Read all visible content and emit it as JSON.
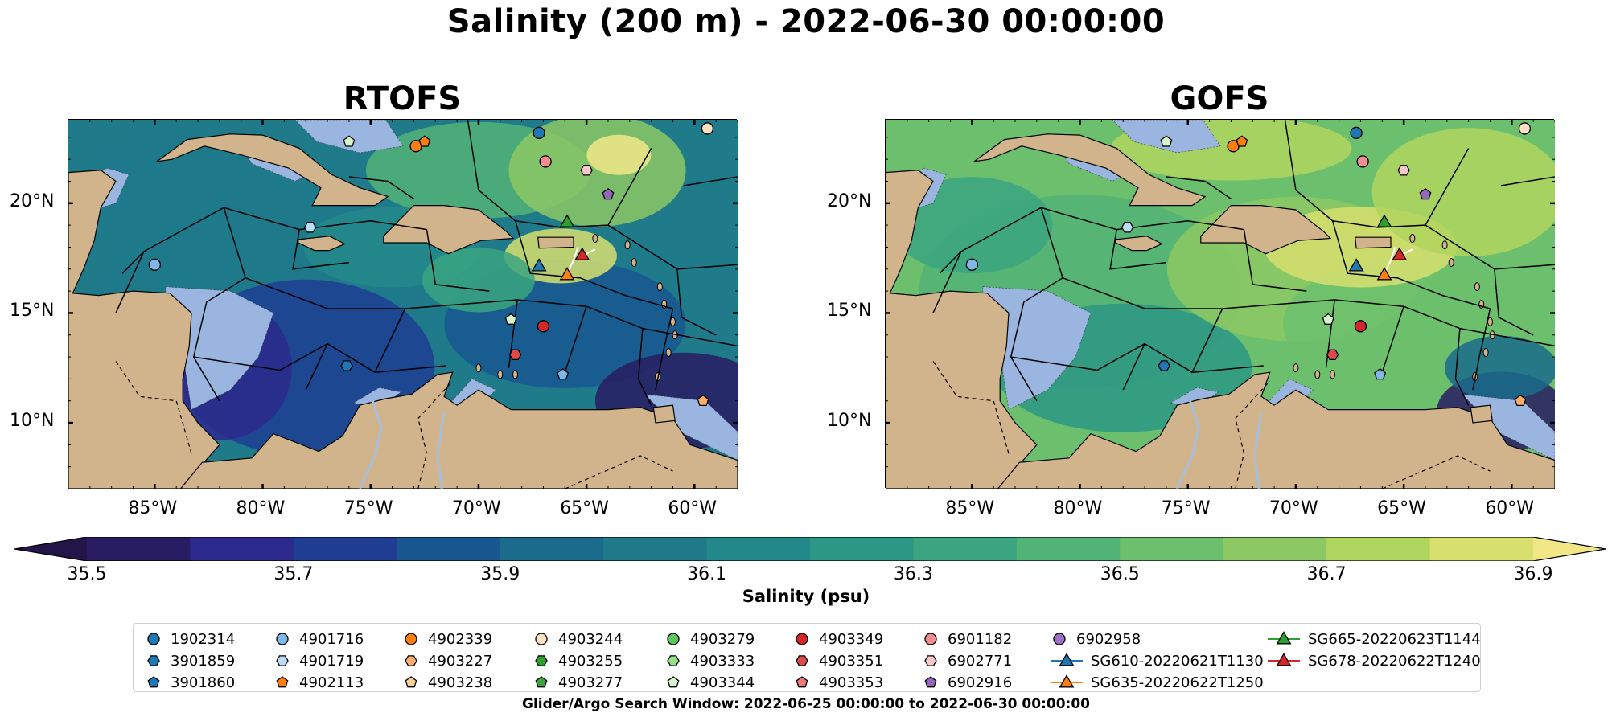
{
  "title": "Salinity (200 m) - 2022-06-30 00:00:00",
  "panels": [
    {
      "id": "rtofs",
      "title": "RTOFS"
    },
    {
      "id": "gofs",
      "title": "GOFS"
    }
  ],
  "axes": {
    "x_ticks": [
      "85°W",
      "80°W",
      "75°W",
      "70°W",
      "65°W",
      "60°W"
    ],
    "x_values": [
      -85,
      -80,
      -75,
      -70,
      -65,
      -60
    ],
    "y_ticks": [
      "20°N",
      "15°N",
      "10°N"
    ],
    "y_values": [
      20,
      15,
      10
    ],
    "lon_range": [
      -89,
      -58
    ],
    "lat_range": [
      7,
      23.8
    ]
  },
  "colorbar": {
    "label": "Salinity (psu)",
    "tick_labels": [
      "35.5",
      "35.7",
      "35.9",
      "36.1",
      "36.3",
      "36.5",
      "36.7",
      "36.9"
    ],
    "min": 35.5,
    "max": 36.9,
    "step": 0.1,
    "extend": "both",
    "colors": [
      "#281c62",
      "#2c2a8c",
      "#1f3e93",
      "#195791",
      "#1a6b8c",
      "#1f7a8a",
      "#23888a",
      "#2b9784",
      "#3aa580",
      "#52b377",
      "#6cbf6c",
      "#8cc864",
      "#b0d55f",
      "#d7df6f"
    ],
    "under_color": "#231449",
    "over_color": "#f2e787"
  },
  "land_color": "#d2b48c",
  "shelf_color": "#9ab6e0",
  "legend": {
    "columns": [
      [
        {
          "label": "1902314",
          "marker": "circle",
          "color": "#1f77b4"
        },
        {
          "label": "3901859",
          "marker": "hexagon",
          "color": "#1f77b4"
        },
        {
          "label": "3901860",
          "marker": "pentagon",
          "color": "#1f77b4"
        }
      ],
      [
        {
          "label": "4901716",
          "marker": "circle",
          "color": "#7fb8e6"
        },
        {
          "label": "4901719",
          "marker": "hexagon",
          "color": "#bcdcf5"
        },
        {
          "label": "4902113",
          "marker": "pentagon",
          "color": "#ff7f0e"
        }
      ],
      [
        {
          "label": "4902339",
          "marker": "circle",
          "color": "#ff7f0e"
        },
        {
          "label": "4903227",
          "marker": "hexagon",
          "color": "#ffae6b"
        },
        {
          "label": "4903238",
          "marker": "pentagon",
          "color": "#ffcf9a"
        }
      ],
      [
        {
          "label": "4903244",
          "marker": "circle",
          "color": "#ffe0c2"
        },
        {
          "label": "4903255",
          "marker": "hexagon",
          "color": "#2ca02c"
        },
        {
          "label": "4903277",
          "marker": "pentagon",
          "color": "#3ba33b"
        }
      ],
      [
        {
          "label": "4903279",
          "marker": "circle",
          "color": "#5fc65f"
        },
        {
          "label": "4903333",
          "marker": "hexagon",
          "color": "#98df8a"
        },
        {
          "label": "4903344",
          "marker": "pentagon",
          "color": "#d6f5cc"
        }
      ],
      [
        {
          "label": "4903349",
          "marker": "circle",
          "color": "#d62728"
        },
        {
          "label": "4903351",
          "marker": "hexagon",
          "color": "#dd4a4a"
        },
        {
          "label": "4903353",
          "marker": "pentagon",
          "color": "#ec7a7a"
        }
      ],
      [
        {
          "label": "6901182",
          "marker": "circle",
          "color": "#f28e8e"
        },
        {
          "label": "6902771",
          "marker": "hexagon",
          "color": "#fbc7c7"
        },
        {
          "label": "6902916",
          "marker": "pentagon",
          "color": "#9467bd"
        }
      ],
      [
        {
          "label": "6902958",
          "marker": "circle",
          "color": "#9e70c6"
        },
        {
          "label": "SG610-20220621T1130",
          "marker": "triangle-line",
          "color": "#1f77b4"
        },
        {
          "label": "SG635-20220622T1250",
          "marker": "triangle-line",
          "color": "#ff7f0e"
        }
      ],
      [
        {
          "label": "SG665-20220623T1144",
          "marker": "triangle-line",
          "color": "#2ca02c"
        },
        {
          "label": "SG678-20220622T1240",
          "marker": "triangle-line",
          "color": "#d62728"
        }
      ]
    ]
  },
  "footer": "Glider/Argo Search Window: 2022-06-25 00:00:00 to 2022-06-30 00:00:00"
}
